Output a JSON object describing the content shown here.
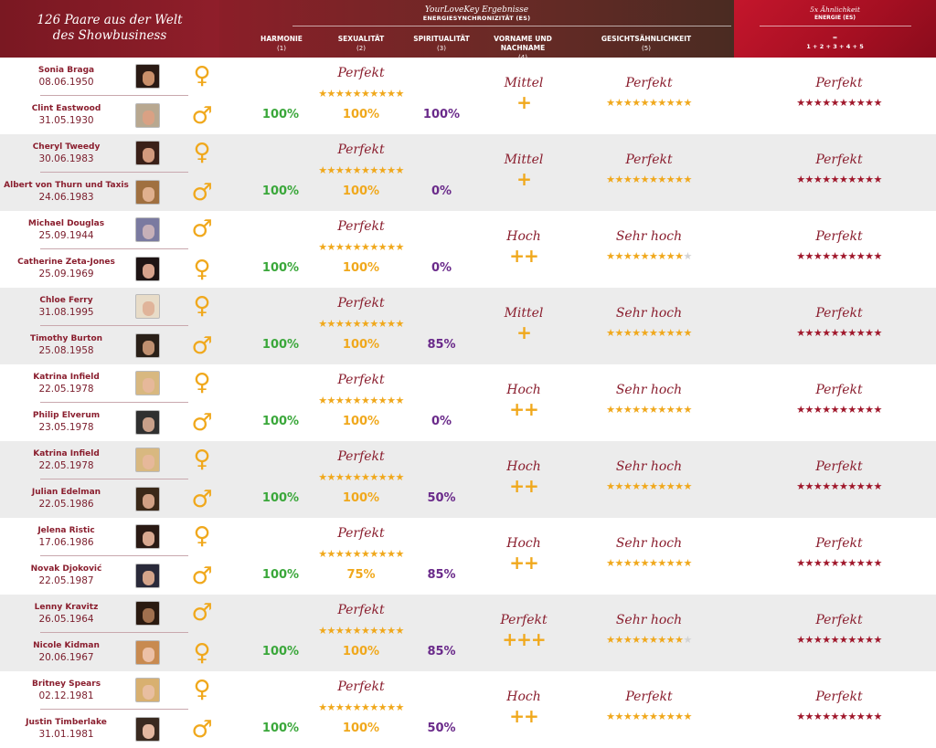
{
  "header": {
    "title_line1": "126 Paare aus der Welt",
    "title_line2": "des Showbusiness",
    "mid_title": "YourLoveKey Ergebnisse",
    "mid_sub": "ENERGIESYNCHRONIZITÄT (ES)",
    "cols": [
      {
        "label": "HARMONIE",
        "num": "(1)"
      },
      {
        "label": "SEXUALITÄT",
        "num": "(2)"
      },
      {
        "label": "SPIRITUALITÄT",
        "num": "(3)"
      },
      {
        "label": "VORNAME UND NACHNAME",
        "num": "(4)"
      },
      {
        "label": "GESICHTSÄHNLICHKEIT",
        "num": "(5)"
      }
    ],
    "right_title": "5x Ähnlichkeit",
    "right_sub": "ENERGIE (ES)",
    "right_eq1": "=",
    "right_eq2": "1 + 2 + 3 + 4 + 5"
  },
  "colors": {
    "accent": "#8a1e2e",
    "gold": "#f0a81c",
    "green": "#3aa73a",
    "purple": "#6a2a8a",
    "energy_red": "#a0172b"
  },
  "pairs": [
    {
      "p1": {
        "name": "Sonia Braga",
        "date": "08.06.1950",
        "gender": "♀",
        "skin": "#c98f6a",
        "hair": "#2a1a14"
      },
      "p2": {
        "name": "Clint Eastwood",
        "date": "31.05.1930",
        "gender": "♂",
        "skin": "#d9a184",
        "hair": "#b8a890"
      },
      "harmony": "Perfekt",
      "sexuality": "100%",
      "harmony_pct": "100%",
      "spirituality": "100%",
      "name_rating": "Mittel",
      "name_plus": "+",
      "face_rating": "Perfekt",
      "face_stars": 10,
      "energy_rating": "Perfekt"
    },
    {
      "p1": {
        "name": "Cheryl Tweedy",
        "date": "30.06.1983",
        "gender": "♀",
        "skin": "#d29a7e",
        "hair": "#3a2018"
      },
      "p2": {
        "name": "Albert von Thurn und Taxis",
        "date": "24.06.1983",
        "gender": "♂",
        "skin": "#e0b08e",
        "hair": "#a07040"
      },
      "harmony": "Perfekt",
      "sexuality": "100%",
      "harmony_pct": "100%",
      "spirituality": "0%",
      "name_rating": "Mittel",
      "name_plus": "+",
      "face_rating": "Perfekt",
      "face_stars": 10,
      "energy_rating": "Perfekt"
    },
    {
      "p1": {
        "name": "Michael Douglas",
        "date": "25.09.1944",
        "gender": "♂",
        "skin": "#c6b0b8",
        "hair": "#7a7aa0"
      },
      "p2": {
        "name": "Catherine Zeta-Jones",
        "date": "25.09.1969",
        "gender": "♀",
        "skin": "#d7a28c",
        "hair": "#1e1414"
      },
      "harmony": "Perfekt",
      "sexuality": "100%",
      "harmony_pct": "100%",
      "spirituality": "0%",
      "name_rating": "Hoch",
      "name_plus": "++",
      "face_rating": "Sehr hoch",
      "face_stars": 9,
      "energy_rating": "Perfekt"
    },
    {
      "p1": {
        "name": "Chloe Ferry",
        "date": "31.08.1995",
        "gender": "♀",
        "skin": "#e0b49a",
        "hair": "#e8dcc8"
      },
      "p2": {
        "name": "Timothy Burton",
        "date": "25.08.1958",
        "gender": "♂",
        "skin": "#c09070",
        "hair": "#2a2018"
      },
      "harmony": "Perfekt",
      "sexuality": "100%",
      "harmony_pct": "100%",
      "spirituality": "85%",
      "name_rating": "Mittel",
      "name_plus": "+",
      "face_rating": "Sehr hoch",
      "face_stars": 10,
      "energy_rating": "Perfekt"
    },
    {
      "p1": {
        "name": "Katrina Infield",
        "date": "22.05.1978",
        "gender": "♀",
        "skin": "#e6b89a",
        "hair": "#d8b880"
      },
      "p2": {
        "name": "Philip Elverum",
        "date": "23.05.1978",
        "gender": "♂",
        "skin": "#c8a08a",
        "hair": "#303030"
      },
      "harmony": "Perfekt",
      "sexuality": "100%",
      "harmony_pct": "100%",
      "spirituality": "0%",
      "name_rating": "Hoch",
      "name_plus": "++",
      "face_rating": "Sehr hoch",
      "face_stars": 10,
      "energy_rating": "Perfekt"
    },
    {
      "p1": {
        "name": "Katrina Infield",
        "date": "22.05.1978",
        "gender": "♀",
        "skin": "#e6b89a",
        "hair": "#d8b880"
      },
      "p2": {
        "name": "Julian Edelman",
        "date": "22.05.1986",
        "gender": "♂",
        "skin": "#d0a084",
        "hair": "#3a2818"
      },
      "harmony": "Perfekt",
      "sexuality": "100%",
      "harmony_pct": "100%",
      "spirituality": "50%",
      "name_rating": "Hoch",
      "name_plus": "++",
      "face_rating": "Sehr hoch",
      "face_stars": 10,
      "energy_rating": "Perfekt"
    },
    {
      "p1": {
        "name": "Jelena Ristic",
        "date": "17.06.1986",
        "gender": "♀",
        "skin": "#d8a890",
        "hair": "#2a1a14"
      },
      "p2": {
        "name": "Novak Djoković",
        "date": "22.05.1987",
        "gender": "♂",
        "skin": "#d4a48a",
        "hair": "#2a2a3a"
      },
      "harmony": "Perfekt",
      "sexuality": "75%",
      "harmony_pct": "100%",
      "spirituality": "85%",
      "name_rating": "Hoch",
      "name_plus": "++",
      "face_rating": "Sehr hoch",
      "face_stars": 10,
      "energy_rating": "Perfekt"
    },
    {
      "p1": {
        "name": "Lenny Kravitz",
        "date": "26.05.1964",
        "gender": "♂",
        "skin": "#a0704e",
        "hair": "#2a1a10"
      },
      "p2": {
        "name": "Nicole Kidman",
        "date": "20.06.1967",
        "gender": "♀",
        "skin": "#ecc0a6",
        "hair": "#c88a50"
      },
      "harmony": "Perfekt",
      "sexuality": "100%",
      "harmony_pct": "100%",
      "spirituality": "85%",
      "name_rating": "Perfekt",
      "name_plus": "+++",
      "face_rating": "Sehr hoch",
      "face_stars": 9,
      "energy_rating": "Perfekt"
    },
    {
      "p1": {
        "name": "Britney Spears",
        "date": "02.12.1981",
        "gender": "♀",
        "skin": "#e8bea0",
        "hair": "#d8b070"
      },
      "p2": {
        "name": "Justin Timberlake",
        "date": "31.01.1981",
        "gender": "♂",
        "skin": "#e4b8a0",
        "hair": "#3a2a20"
      },
      "harmony": "Perfekt",
      "sexuality": "100%",
      "harmony_pct": "100%",
      "spirituality": "50%",
      "name_rating": "Hoch",
      "name_plus": "++",
      "face_rating": "Perfekt",
      "face_stars": 10,
      "energy_rating": "Perfekt"
    }
  ]
}
